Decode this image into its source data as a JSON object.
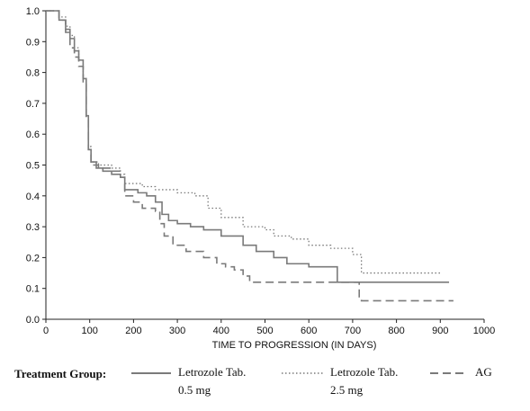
{
  "chart_data": {
    "type": "line",
    "xlabel": "TIME TO PROGRESSION (IN DAYS)",
    "ylabel": "",
    "xlim": [
      0,
      1000
    ],
    "ylim": [
      0,
      1.0
    ],
    "x_ticks": [
      "0",
      "100",
      "200",
      "300",
      "400",
      "500",
      "600",
      "700",
      "800",
      "900",
      "1000"
    ],
    "y_ticks": [
      "0.0",
      "0.1",
      "0.2",
      "0.3",
      "0.4",
      "0.5",
      "0.6",
      "0.7",
      "0.8",
      "0.9",
      "1.0"
    ],
    "grid": false,
    "legend_position": "bottom",
    "legend_title": "Treatment Group:",
    "series": [
      {
        "name": "Letrozole Tab. 0.5 mg",
        "name_line1": "Letrozole Tab.",
        "name_line2": "0.5 mg",
        "style": "solid",
        "color": "#7a7a7a",
        "points": [
          [
            0,
            1.0
          ],
          [
            15,
            1.0
          ],
          [
            30,
            0.97
          ],
          [
            45,
            0.94
          ],
          [
            55,
            0.91
          ],
          [
            65,
            0.87
          ],
          [
            75,
            0.84
          ],
          [
            85,
            0.78
          ],
          [
            92,
            0.66
          ],
          [
            97,
            0.55
          ],
          [
            103,
            0.51
          ],
          [
            115,
            0.49
          ],
          [
            130,
            0.48
          ],
          [
            150,
            0.47
          ],
          [
            170,
            0.46
          ],
          [
            180,
            0.42
          ],
          [
            210,
            0.41
          ],
          [
            230,
            0.4
          ],
          [
            250,
            0.38
          ],
          [
            265,
            0.34
          ],
          [
            280,
            0.32
          ],
          [
            300,
            0.31
          ],
          [
            330,
            0.3
          ],
          [
            360,
            0.29
          ],
          [
            400,
            0.27
          ],
          [
            450,
            0.24
          ],
          [
            480,
            0.22
          ],
          [
            520,
            0.2
          ],
          [
            550,
            0.18
          ],
          [
            600,
            0.17
          ],
          [
            650,
            0.17
          ],
          [
            665,
            0.12
          ],
          [
            700,
            0.12
          ],
          [
            920,
            0.12
          ]
        ]
      },
      {
        "name": "Letrozole Tab. 2.5 mg",
        "name_line1": "Letrozole Tab.",
        "name_line2": "2.5 mg",
        "style": "dotted",
        "color": "#7a7a7a",
        "points": [
          [
            0,
            1.0
          ],
          [
            15,
            1.0
          ],
          [
            30,
            0.98
          ],
          [
            45,
            0.95
          ],
          [
            55,
            0.92
          ],
          [
            65,
            0.88
          ],
          [
            75,
            0.84
          ],
          [
            85,
            0.78
          ],
          [
            92,
            0.66
          ],
          [
            97,
            0.56
          ],
          [
            103,
            0.51
          ],
          [
            120,
            0.5
          ],
          [
            150,
            0.49
          ],
          [
            170,
            0.47
          ],
          [
            180,
            0.44
          ],
          [
            220,
            0.43
          ],
          [
            250,
            0.42
          ],
          [
            300,
            0.41
          ],
          [
            340,
            0.4
          ],
          [
            370,
            0.36
          ],
          [
            400,
            0.33
          ],
          [
            450,
            0.3
          ],
          [
            500,
            0.29
          ],
          [
            520,
            0.27
          ],
          [
            560,
            0.26
          ],
          [
            600,
            0.24
          ],
          [
            650,
            0.23
          ],
          [
            700,
            0.21
          ],
          [
            720,
            0.15
          ],
          [
            800,
            0.15
          ],
          [
            900,
            0.15
          ]
        ]
      },
      {
        "name": "AG",
        "style": "dashed",
        "color": "#7a7a7a",
        "points": [
          [
            0,
            1.0
          ],
          [
            15,
            1.0
          ],
          [
            30,
            0.97
          ],
          [
            45,
            0.93
          ],
          [
            55,
            0.88
          ],
          [
            65,
            0.85
          ],
          [
            75,
            0.82
          ],
          [
            85,
            0.77
          ],
          [
            92,
            0.65
          ],
          [
            97,
            0.55
          ],
          [
            103,
            0.5
          ],
          [
            120,
            0.49
          ],
          [
            150,
            0.48
          ],
          [
            170,
            0.46
          ],
          [
            180,
            0.4
          ],
          [
            200,
            0.38
          ],
          [
            220,
            0.36
          ],
          [
            250,
            0.35
          ],
          [
            260,
            0.31
          ],
          [
            270,
            0.27
          ],
          [
            290,
            0.24
          ],
          [
            320,
            0.22
          ],
          [
            360,
            0.2
          ],
          [
            390,
            0.18
          ],
          [
            410,
            0.17
          ],
          [
            430,
            0.16
          ],
          [
            450,
            0.14
          ],
          [
            465,
            0.12
          ],
          [
            500,
            0.12
          ],
          [
            700,
            0.12
          ],
          [
            715,
            0.07
          ],
          [
            720,
            0.06
          ],
          [
            930,
            0.06
          ]
        ]
      }
    ]
  }
}
